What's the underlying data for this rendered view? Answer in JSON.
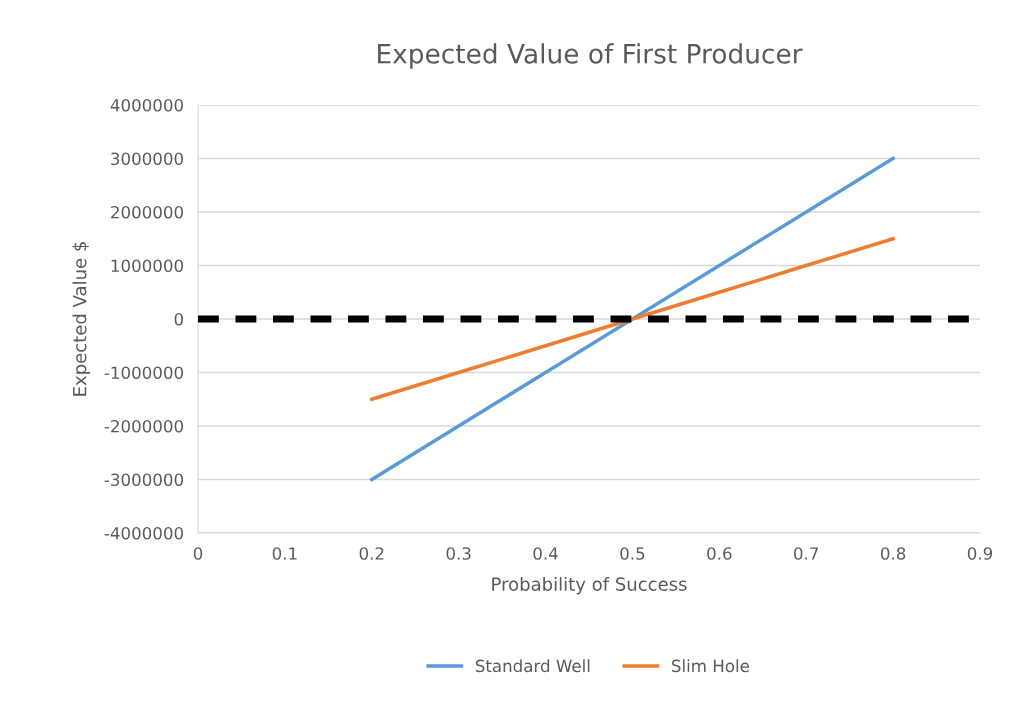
{
  "chart_data": {
    "type": "line",
    "title": "Expected Value of First Producer",
    "xlabel": "Probability of Success",
    "ylabel": "Expected Value $",
    "x": [
      0.2,
      0.3,
      0.4,
      0.5,
      0.6,
      0.7,
      0.8
    ],
    "series": [
      {
        "name": "Standard Well",
        "color": "#5b9bd5",
        "values": [
          -3000000,
          -2000000,
          -1000000,
          0,
          1000000,
          2000000,
          3000000
        ]
      },
      {
        "name": "Slim Hole",
        "color": "#ed7d31",
        "values": [
          -1500000,
          -1000000,
          -500000,
          0,
          500000,
          1000000,
          1500000
        ]
      }
    ],
    "xlim": [
      0,
      0.9
    ],
    "xticks": [
      0,
      0.1,
      0.2,
      0.3,
      0.4,
      0.5,
      0.6,
      0.7,
      0.8,
      0.9
    ],
    "ylim": [
      -4000000,
      4000000
    ],
    "yticks": [
      -4000000,
      -3000000,
      -2000000,
      -1000000,
      0,
      1000000,
      2000000,
      3000000,
      4000000
    ],
    "ref_lines": [
      {
        "axis": "y",
        "value": 0,
        "color": "#000000",
        "line_style": "dashed"
      }
    ],
    "grid": "y",
    "legend": "bottom",
    "marker": "none",
    "line_style": "solid"
  }
}
